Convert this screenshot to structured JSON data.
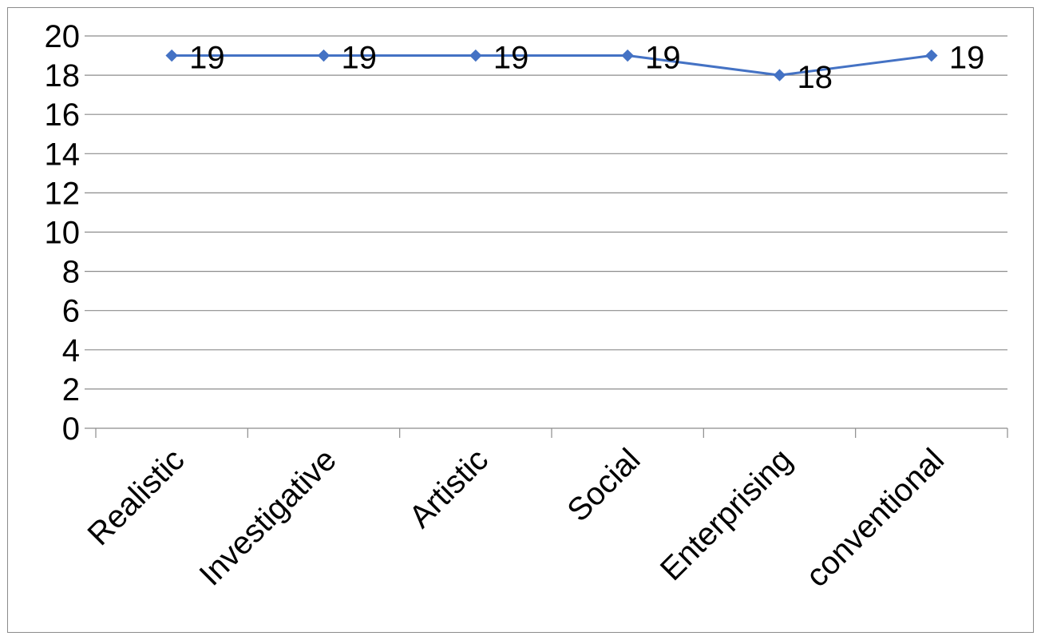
{
  "chart_data": {
    "type": "line",
    "categories": [
      "Realistic",
      "Investigative",
      "Artistic",
      "Social",
      "Enterprising",
      "conventional"
    ],
    "series": [
      {
        "values": [
          19,
          19,
          19,
          19,
          18,
          19
        ],
        "color": "#4472C4",
        "marker": "diamond",
        "data_labels": [
          "19",
          "19",
          "19",
          "19",
          "18",
          "19"
        ]
      }
    ],
    "title": "",
    "xlabel": "",
    "ylabel": "",
    "ylim": [
      0,
      20
    ],
    "yticks": [
      "0",
      "2",
      "4",
      "6",
      "8",
      "10",
      "12",
      "14",
      "16",
      "18",
      "20"
    ],
    "grid": true,
    "legend": "none"
  }
}
